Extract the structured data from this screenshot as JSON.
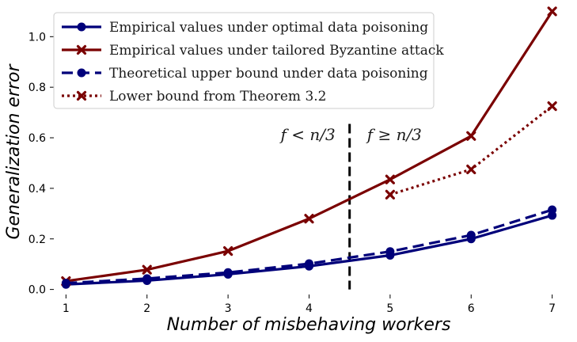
{
  "chart_data": {
    "type": "line",
    "xlabel": "Number of misbehaving workers",
    "ylabel": "Generalization error",
    "x_ticks": [
      "1",
      "2",
      "3",
      "4",
      "5",
      "6",
      "7"
    ],
    "y_ticks": [
      "0.0",
      "0.2",
      "0.4",
      "0.6",
      "0.8",
      "1.0"
    ],
    "xlim": [
      0.85,
      7.15
    ],
    "ylim": [
      -0.02,
      1.12
    ],
    "grid": false,
    "legend_position": "upper-left",
    "threshold_x": 4.5,
    "region_labels": [
      "f < n/3",
      "f ≥ n/3"
    ],
    "series": [
      {
        "name": "Empirical values under optimal data poisoning",
        "color": "#00007a",
        "line": "solid",
        "marker": "circle",
        "x": [
          1,
          2,
          3,
          4,
          5,
          6,
          7
        ],
        "y": [
          0.02,
          0.035,
          0.06,
          0.092,
          0.135,
          0.2,
          0.293
        ]
      },
      {
        "name": "Empirical values under tailored Byzantine attack",
        "color": "#7a0000",
        "line": "solid",
        "marker": "x",
        "x": [
          1,
          2,
          3,
          4,
          5,
          6,
          7
        ],
        "y": [
          0.033,
          0.078,
          0.152,
          0.28,
          0.435,
          0.607,
          1.1
        ]
      },
      {
        "name": "Theoretical upper bound under data poisoning",
        "color": "#00007a",
        "line": "dashed",
        "marker": "circle",
        "x": [
          1,
          2,
          3,
          4,
          5,
          6,
          7
        ],
        "y": [
          0.025,
          0.043,
          0.067,
          0.102,
          0.15,
          0.215,
          0.315
        ]
      },
      {
        "name": "Lower bound from Theorem 3.2",
        "color": "#7a0000",
        "line": "dotted",
        "marker": "x",
        "x": [
          5,
          6,
          7
        ],
        "y": [
          0.375,
          0.475,
          0.725
        ]
      }
    ]
  }
}
